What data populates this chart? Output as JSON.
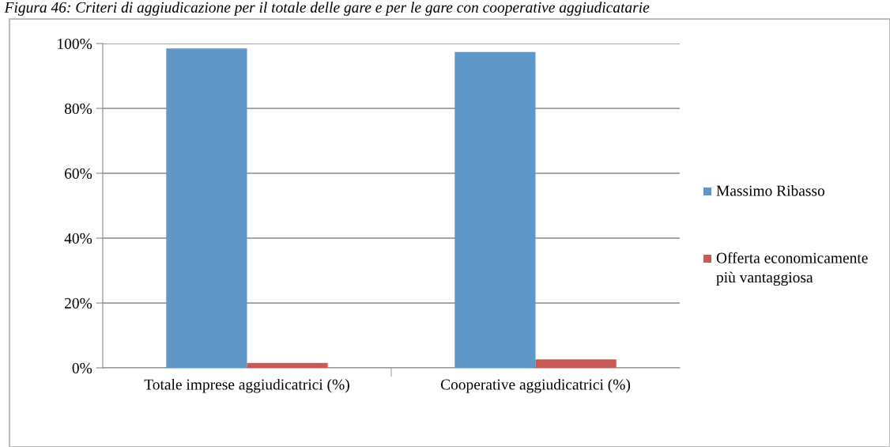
{
  "chart_data": {
    "type": "bar",
    "title": "Figura 46: Criteri di aggiudicazione per il totale delle gare e per le gare con cooperative aggiudicatarie",
    "categories": [
      "Totale imprese aggiudicatrici (%)",
      "Cooperative aggiudicatrici (%)"
    ],
    "series": [
      {
        "name": "Massimo Ribasso",
        "color": "#6096c8",
        "values": [
          98.5,
          97.4
        ]
      },
      {
        "name": "Offerta economicamente più vantaggiosa",
        "color": "#c85a56",
        "values": [
          1.5,
          2.6
        ]
      }
    ],
    "ylim": [
      0,
      100
    ],
    "yticks": [
      {
        "value": 0,
        "label": "0%"
      },
      {
        "value": 20,
        "label": "20%"
      },
      {
        "value": 40,
        "label": "40%"
      },
      {
        "value": 60,
        "label": "60%"
      },
      {
        "value": 80,
        "label": "80%"
      },
      {
        "value": 100,
        "label": "100%"
      }
    ],
    "grid": "y",
    "legend": "right"
  }
}
